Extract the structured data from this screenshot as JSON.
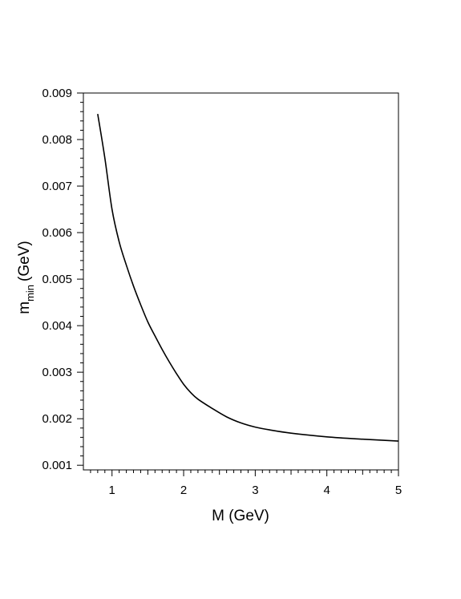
{
  "chart_data": {
    "type": "line",
    "xlabel": "M (GeV)",
    "ylabel_main": "m",
    "ylabel_sub": "min",
    "ylabel_unit": "(GeV)",
    "xlim": [
      0.6,
      5.0
    ],
    "ylim": [
      0.0009,
      0.009
    ],
    "x_ticks": [
      1,
      2,
      3,
      4,
      5
    ],
    "x_tick_labels": [
      "1",
      "2",
      "3",
      "4",
      "5"
    ],
    "y_ticks": [
      0.001,
      0.002,
      0.003,
      0.004,
      0.005,
      0.006,
      0.007,
      0.008,
      0.009
    ],
    "y_tick_labels": [
      "0.001",
      "0.002",
      "0.003",
      "0.004",
      "0.005",
      "0.006",
      "0.007",
      "0.008",
      "0.009"
    ],
    "grid": false,
    "legend": "none",
    "line_color": "#000000",
    "series": [
      {
        "x": [
          0.8,
          0.9,
          1.0,
          1.1,
          1.2,
          1.3,
          1.4,
          1.5,
          1.6,
          1.7,
          1.8,
          1.9,
          2.0,
          2.1,
          2.2,
          2.4,
          2.6,
          2.8,
          3.0,
          3.2,
          3.5,
          4.0,
          4.5,
          5.0
        ],
        "y": [
          0.00855,
          0.0076,
          0.0065,
          0.0058,
          0.0053,
          0.00485,
          0.00445,
          0.00408,
          0.00378,
          0.00349,
          0.00322,
          0.00297,
          0.00274,
          0.00256,
          0.00242,
          0.00222,
          0.00204,
          0.00191,
          0.00182,
          0.00176,
          0.00169,
          0.00161,
          0.00156,
          0.00152
        ]
      }
    ]
  }
}
